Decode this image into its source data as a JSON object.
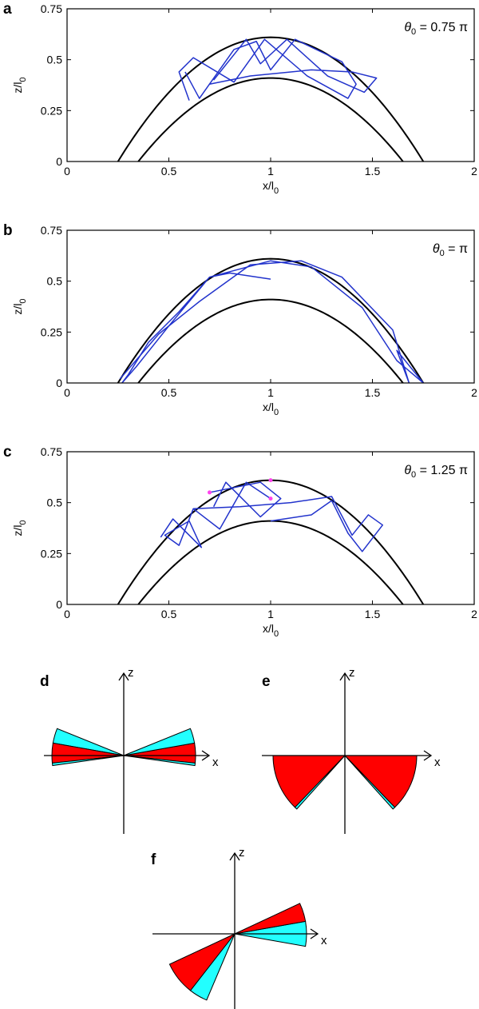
{
  "chart_data": [
    {
      "type": "line",
      "panel_letter": "a",
      "annotation": {
        "theta_symbol": "θ",
        "theta_sub": "0",
        "text": " = 0.75 π"
      },
      "xlabel": {
        "main": "x/l",
        "sub": "0"
      },
      "ylabel": {
        "main": "z/l",
        "sub": "0"
      },
      "xlim": [
        0,
        2
      ],
      "ylim": [
        0,
        0.75
      ],
      "xticks": [
        0,
        0.5,
        1,
        1.5,
        2
      ],
      "xtick_labels": [
        "0",
        "0.5",
        "1",
        "1.5",
        "2"
      ],
      "yticks": [
        0,
        0.25,
        0.5,
        0.75
      ],
      "ytick_labels": [
        "0",
        "0.25",
        "0.5",
        "0.75"
      ],
      "boundaries": [
        {
          "name": "outer-boundary",
          "shape": "parabola",
          "vertex": [
            1.0,
            0.61
          ],
          "roots": [
            0.25,
            1.75
          ],
          "color": "#000000"
        },
        {
          "name": "inner-boundary",
          "shape": "parabola",
          "vertex": [
            1.0,
            0.41
          ],
          "roots": [
            0.35,
            1.65
          ],
          "color": "#000000"
        }
      ],
      "series": [
        {
          "name": "trajectory-a1",
          "color": "#2233cc",
          "x": [
            0.58,
            0.65,
            0.82,
            0.93,
            1.0,
            1.12,
            1.35,
            1.42,
            1.38,
            1.18,
            0.97,
            0.82,
            0.62,
            0.55,
            0.6
          ],
          "y": [
            0.44,
            0.31,
            0.55,
            0.59,
            0.45,
            0.6,
            0.49,
            0.38,
            0.31,
            0.42,
            0.6,
            0.39,
            0.51,
            0.44,
            0.3
          ]
        },
        {
          "name": "trajectory-a2",
          "color": "#2233cc",
          "x": [
            0.72,
            0.88,
            0.95,
            1.08,
            1.28,
            1.46,
            1.52,
            1.4,
            1.2,
            0.9,
            0.7
          ],
          "y": [
            0.4,
            0.6,
            0.48,
            0.6,
            0.42,
            0.34,
            0.41,
            0.44,
            0.45,
            0.42,
            0.38
          ]
        }
      ]
    },
    {
      "type": "line",
      "panel_letter": "b",
      "annotation": {
        "theta_symbol": "θ",
        "theta_sub": "0",
        "text": " = π"
      },
      "xlabel": {
        "main": "x/l",
        "sub": "0"
      },
      "ylabel": {
        "main": "z/l",
        "sub": "0"
      },
      "xlim": [
        0,
        2
      ],
      "ylim": [
        0,
        0.75
      ],
      "xticks": [
        0,
        0.5,
        1,
        1.5,
        2
      ],
      "xtick_labels": [
        "0",
        "0.5",
        "1",
        "1.5",
        "2"
      ],
      "yticks": [
        0,
        0.25,
        0.5,
        0.75
      ],
      "ytick_labels": [
        "0",
        "0.25",
        "0.5",
        "0.75"
      ],
      "boundaries": [
        {
          "name": "outer-boundary",
          "shape": "parabola",
          "vertex": [
            1.0,
            0.61
          ],
          "roots": [
            0.25,
            1.75
          ],
          "color": "#000000"
        },
        {
          "name": "inner-boundary",
          "shape": "parabola",
          "vertex": [
            1.0,
            0.41
          ],
          "roots": [
            0.35,
            1.65
          ],
          "color": "#000000"
        }
      ],
      "series": [
        {
          "name": "trajectory-b1",
          "color": "#2233cc",
          "x": [
            1.0,
            0.8,
            0.7,
            0.55,
            0.4,
            0.3,
            0.27,
            0.34,
            0.5,
            0.7,
            1.0,
            1.2,
            1.45,
            1.62,
            1.75
          ],
          "y": [
            0.51,
            0.54,
            0.52,
            0.35,
            0.2,
            0.04,
            0.0,
            0.08,
            0.28,
            0.52,
            0.6,
            0.57,
            0.37,
            0.11,
            0.0
          ]
        },
        {
          "name": "trajectory-b2",
          "color": "#2233cc",
          "x": [
            0.26,
            0.45,
            0.65,
            0.9,
            1.15,
            1.35,
            1.6,
            1.68,
            1.62,
            1.75
          ],
          "y": [
            0.02,
            0.24,
            0.4,
            0.58,
            0.6,
            0.52,
            0.26,
            0.0,
            0.16,
            0.0
          ]
        }
      ]
    },
    {
      "type": "line",
      "panel_letter": "c",
      "annotation": {
        "theta_symbol": "θ",
        "theta_sub": "0",
        "text": " = 1.25 π"
      },
      "xlabel": {
        "main": "x/l",
        "sub": "0"
      },
      "ylabel": {
        "main": "z/l",
        "sub": "0"
      },
      "xlim": [
        0,
        2
      ],
      "ylim": [
        0,
        0.75
      ],
      "xticks": [
        0,
        0.5,
        1,
        1.5,
        2
      ],
      "xtick_labels": [
        "0",
        "0.5",
        "1",
        "1.5",
        "2"
      ],
      "yticks": [
        0,
        0.25,
        0.5,
        0.75
      ],
      "ytick_labels": [
        "0",
        "0.25",
        "0.5",
        "0.75"
      ],
      "boundaries": [
        {
          "name": "outer-boundary",
          "shape": "parabola",
          "vertex": [
            1.0,
            0.61
          ],
          "roots": [
            0.25,
            1.75
          ],
          "color": "#000000"
        },
        {
          "name": "inner-boundary",
          "shape": "parabola",
          "vertex": [
            1.0,
            0.41
          ],
          "roots": [
            0.35,
            1.65
          ],
          "color": "#000000"
        }
      ],
      "series": [
        {
          "name": "trajectory-c1",
          "color": "#2233cc",
          "x": [
            1.0,
            0.88,
            0.75,
            0.62,
            0.55,
            0.48,
            0.6,
            0.66,
            0.52,
            0.46
          ],
          "y": [
            0.52,
            0.6,
            0.37,
            0.47,
            0.29,
            0.34,
            0.41,
            0.28,
            0.42,
            0.33
          ]
        },
        {
          "name": "trajectory-c2",
          "color": "#2233cc",
          "x": [
            0.62,
            0.85,
            1.1,
            1.3,
            1.4,
            1.48,
            1.55,
            1.45,
            1.38,
            1.3,
            1.2,
            1.0
          ],
          "y": [
            0.47,
            0.48,
            0.5,
            0.53,
            0.34,
            0.44,
            0.39,
            0.26,
            0.35,
            0.51,
            0.44,
            0.41
          ]
        },
        {
          "name": "trajectory-c3",
          "color": "#2233cc",
          "x": [
            0.7,
            0.95,
            1.05,
            0.95,
            0.78,
            0.72
          ],
          "y": [
            0.55,
            0.6,
            0.52,
            0.43,
            0.6,
            0.48
          ]
        }
      ],
      "markers": [
        {
          "name": "start-point",
          "x": 0.7,
          "y": 0.55,
          "color": "#ff44ee"
        },
        {
          "name": "apex-point",
          "x": 1.0,
          "y": 0.61,
          "color": "#ff44ee"
        },
        {
          "name": "inner-point",
          "x": 1.0,
          "y": 0.52,
          "color": "#ff44ee"
        }
      ]
    }
  ],
  "diagrams": [
    {
      "panel_letter": "d",
      "x_label": "x",
      "z_label": "z",
      "wedges": [
        {
          "color": "#ff0000",
          "start_deg": -6,
          "end_deg": 10
        },
        {
          "color": "#22ffff",
          "start_deg": 10,
          "end_deg": 22
        },
        {
          "color": "#22ffff",
          "start_deg": -8,
          "end_deg": -6
        },
        {
          "color": "#22ffff",
          "start_deg": 158,
          "end_deg": 170
        },
        {
          "color": "#ff0000",
          "start_deg": 170,
          "end_deg": 186
        },
        {
          "color": "#22ffff",
          "start_deg": 186,
          "end_deg": 188
        }
      ]
    },
    {
      "panel_letter": "e",
      "x_label": "x",
      "z_label": "z",
      "wedges": [
        {
          "color": "#ff0000",
          "start_deg": -46,
          "end_deg": 0
        },
        {
          "color": "#22ffff",
          "start_deg": -48,
          "end_deg": -46
        },
        {
          "color": "#ff0000",
          "start_deg": 180,
          "end_deg": 226
        },
        {
          "color": "#22ffff",
          "start_deg": 226,
          "end_deg": 228
        }
      ]
    },
    {
      "panel_letter": "f",
      "x_label": "x",
      "z_label": "z",
      "wedges": [
        {
          "color": "#22ffff",
          "start_deg": -10,
          "end_deg": 10
        },
        {
          "color": "#ff0000",
          "start_deg": 10,
          "end_deg": 25
        },
        {
          "color": "#ff0000",
          "start_deg": 205,
          "end_deg": 232
        },
        {
          "color": "#22ffff",
          "start_deg": 232,
          "end_deg": 247
        }
      ]
    }
  ]
}
